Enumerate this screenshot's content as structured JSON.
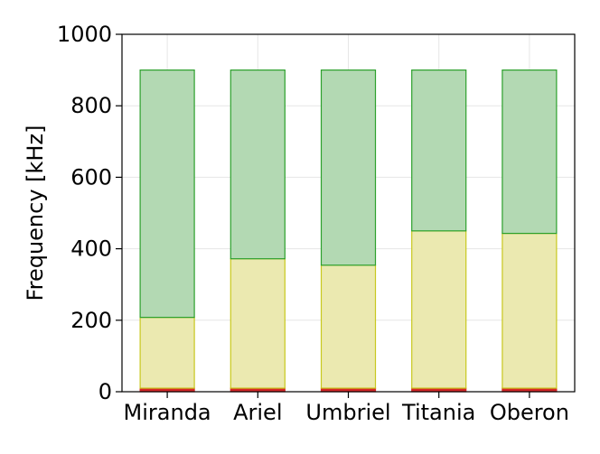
{
  "chart_data": {
    "type": "bar",
    "stacked": true,
    "categories": [
      "Miranda",
      "Ariel",
      "Umbriel",
      "Titania",
      "Oberon"
    ],
    "series": [
      {
        "values": [
          10,
          10,
          10,
          10,
          10
        ],
        "fill": "#d62728",
        "edge": "#d62728"
      },
      {
        "values": [
          198,
          362,
          344,
          440,
          433
        ],
        "fill": "#ebe9b0",
        "edge": "#c8c81e"
      },
      {
        "values": [
          692,
          528,
          546,
          450,
          457
        ],
        "fill": "#b3d9b3",
        "edge": "#2ca02c"
      }
    ],
    "xlabel": "",
    "ylabel": "Frequency [kHz]",
    "ylim": [
      0,
      1000
    ],
    "yticks": [
      0,
      200,
      400,
      600,
      800,
      1000
    ],
    "grid": true,
    "legend": "none"
  }
}
